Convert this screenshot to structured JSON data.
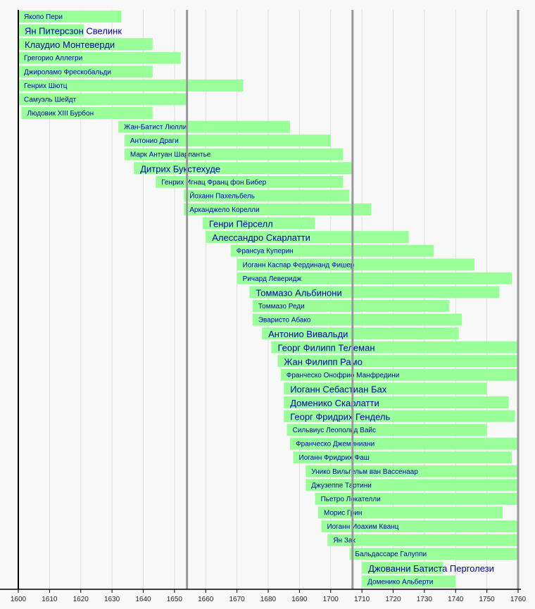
{
  "chart_data": {
    "type": "bar",
    "orientation": "horizontal-timeline",
    "title": "",
    "xlabel": "",
    "ylabel": "",
    "xlim": [
      1600,
      1760
    ],
    "xticks": [
      1600,
      1610,
      1620,
      1630,
      1640,
      1650,
      1660,
      1670,
      1680,
      1690,
      1700,
      1710,
      1720,
      1730,
      1740,
      1750,
      1760
    ],
    "markers": [
      1654,
      1707
    ],
    "grid": true,
    "bar_color": "#99ff99",
    "label_color": "#0000aa",
    "series": [
      {
        "name": "Якопо Пери",
        "start": 1600,
        "end": 1633,
        "major": false
      },
      {
        "name": "Ян Питерсзон Свелинк",
        "start": 1600,
        "end": 1621,
        "major": true
      },
      {
        "name": "Клаудио Монтеверди",
        "start": 1600,
        "end": 1643,
        "major": true
      },
      {
        "name": "Грегорио Аллегри",
        "start": 1600,
        "end": 1652,
        "major": false
      },
      {
        "name": "Джироламо Фрескобальди",
        "start": 1600,
        "end": 1643,
        "major": false
      },
      {
        "name": "Генрих Шютц",
        "start": 1600,
        "end": 1672,
        "major": false
      },
      {
        "name": "Самуэль Шейдт",
        "start": 1600,
        "end": 1654,
        "major": false
      },
      {
        "name": "Людовик XIII Бурбон",
        "start": 1601,
        "end": 1643,
        "major": false
      },
      {
        "name": "Жан-Батист Люлли",
        "start": 1632,
        "end": 1687,
        "major": false
      },
      {
        "name": "Антонио Драги",
        "start": 1634,
        "end": 1700,
        "major": false
      },
      {
        "name": "Марк Антуан Шарпантье",
        "start": 1634,
        "end": 1704,
        "major": false
      },
      {
        "name": "Дитрих Букстехуде",
        "start": 1637,
        "end": 1707,
        "major": true
      },
      {
        "name": "Генрих Игнац Франц фон Бибер",
        "start": 1644,
        "end": 1704,
        "major": false
      },
      {
        "name": "Йоханн Пахельбель",
        "start": 1653,
        "end": 1706,
        "major": false
      },
      {
        "name": "Арканджело Корелли",
        "start": 1653,
        "end": 1713,
        "major": false
      },
      {
        "name": "Генри Пёрселл",
        "start": 1659,
        "end": 1695,
        "major": true
      },
      {
        "name": "Алессандро Скарлатти",
        "start": 1660,
        "end": 1725,
        "major": true
      },
      {
        "name": "Франсуа Куперин",
        "start": 1668,
        "end": 1733,
        "major": false
      },
      {
        "name": "Иоганн Каспар Фердинанд Фишер",
        "start": 1670,
        "end": 1746,
        "major": false
      },
      {
        "name": "Ричард Леверидж",
        "start": 1670,
        "end": 1758,
        "major": false
      },
      {
        "name": "Томмазо Альбинони",
        "start": 1674,
        "end": 1754,
        "major": true
      },
      {
        "name": "Томмазо Реди",
        "start": 1675,
        "end": 1738,
        "major": false
      },
      {
        "name": "Эваристо Абако",
        "start": 1675,
        "end": 1742,
        "major": false
      },
      {
        "name": "Антонио Вивальди",
        "start": 1678,
        "end": 1741,
        "major": true
      },
      {
        "name": "Георг Филипп Телеман",
        "start": 1681,
        "end": 1760,
        "major": true
      },
      {
        "name": "Жан Филипп Рамо",
        "start": 1683,
        "end": 1760,
        "major": true
      },
      {
        "name": "Франческо Онофрио Манфредини",
        "start": 1684,
        "end": 1760,
        "major": false
      },
      {
        "name": "Иоганн Себастиан Бах",
        "start": 1685,
        "end": 1750,
        "major": true
      },
      {
        "name": "Доменико Скарлатти",
        "start": 1685,
        "end": 1757,
        "major": true
      },
      {
        "name": "Георг Фридрих Гендель",
        "start": 1685,
        "end": 1759,
        "major": true
      },
      {
        "name": "Сильвиус Леопольд Вайс",
        "start": 1686,
        "end": 1750,
        "major": false
      },
      {
        "name": "Франческо Джеминиани",
        "start": 1687,
        "end": 1760,
        "major": false
      },
      {
        "name": "Иоганн Фридрих Фаш",
        "start": 1688,
        "end": 1758,
        "major": false
      },
      {
        "name": "Унико Вильгельм ван Вассенаар",
        "start": 1692,
        "end": 1760,
        "major": false
      },
      {
        "name": "Джузеппе Тартини",
        "start": 1692,
        "end": 1760,
        "major": false
      },
      {
        "name": "Пьетро Локателли",
        "start": 1695,
        "end": 1760,
        "major": false
      },
      {
        "name": "Морис Грин",
        "start": 1696,
        "end": 1755,
        "major": false
      },
      {
        "name": "Иоганн Иоахим Кванц",
        "start": 1697,
        "end": 1760,
        "major": false
      },
      {
        "name": "Ян Зак",
        "start": 1699,
        "end": 1760,
        "major": false
      },
      {
        "name": "Бальдассаре Галуппи",
        "start": 1706,
        "end": 1760,
        "major": false
      },
      {
        "name": "Джованни Батиста Перголези",
        "start": 1710,
        "end": 1736,
        "major": true
      },
      {
        "name": "Доменико Альберти",
        "start": 1710,
        "end": 1740,
        "major": false
      }
    ]
  }
}
